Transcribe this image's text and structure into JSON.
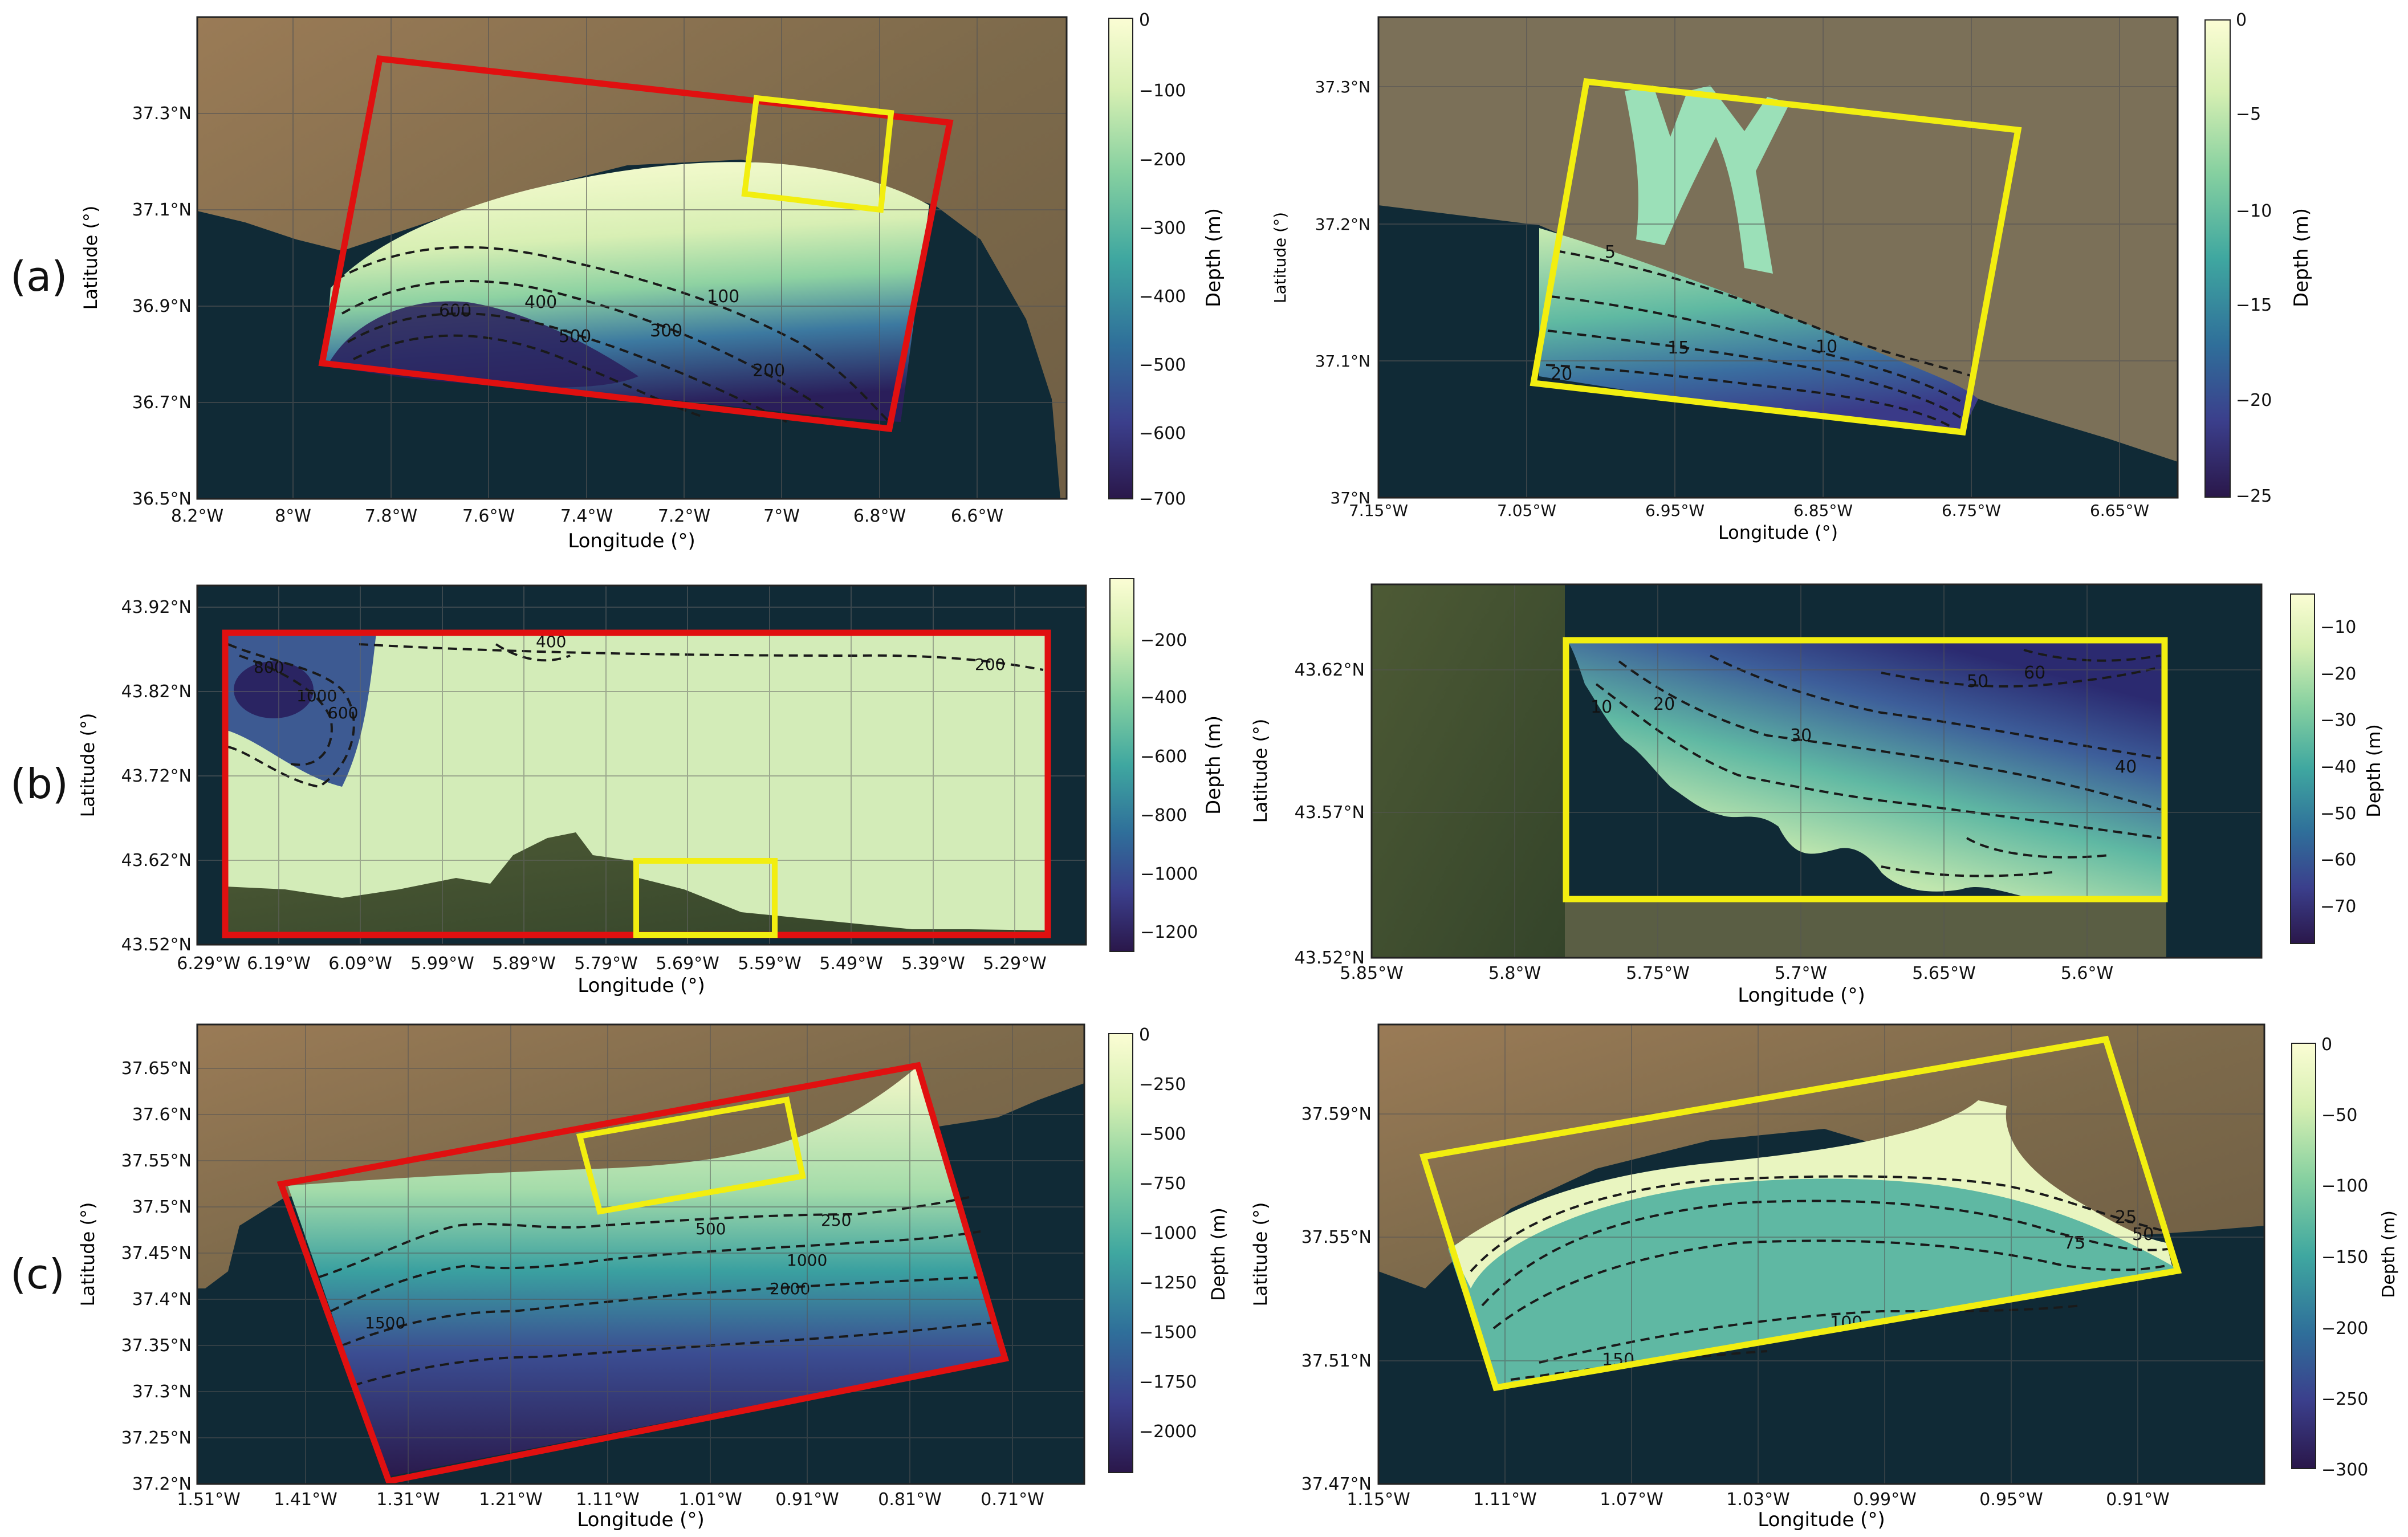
{
  "rows": [
    {
      "label": "(a)",
      "left": {
        "x_ticks": [
          "8.2°W",
          "8°W",
          "7.8°W",
          "7.6°W",
          "7.4°W",
          "7.2°W",
          "7°W",
          "6.8°W",
          "6.6°W"
        ],
        "y_ticks": [
          "36.5°N",
          "36.7°N",
          "36.9°N",
          "37.1°N",
          "37.3°N"
        ],
        "xlabel": "Longitude (°)",
        "ylabel": "Latitude (°)",
        "contours": [
          "100",
          "200",
          "300",
          "400",
          "500",
          "600"
        ],
        "colorbar": {
          "label": "Depth (m)",
          "ticks": [
            "0",
            "−100",
            "−200",
            "−300",
            "−400",
            "−500",
            "−600",
            "−700"
          ]
        }
      },
      "right": {
        "x_ticks": [
          "7.15°W",
          "7.05°W",
          "6.95°W",
          "6.85°W",
          "6.75°W",
          "6.65°W"
        ],
        "y_ticks": [
          "37°N",
          "37.1°N",
          "37.2°N",
          "37.3°N"
        ],
        "xlabel": "Longitude (°)",
        "ylabel": "Latitude (°)",
        "contours": [
          "5",
          "10",
          "15",
          "20"
        ],
        "colorbar": {
          "label": "Depth (m)",
          "ticks": [
            "0",
            "−5",
            "−10",
            "−15",
            "−20",
            "−25"
          ]
        }
      }
    },
    {
      "label": "(b)",
      "left": {
        "x_ticks": [
          "6.29°W",
          "6.19°W",
          "6.09°W",
          "5.99°W",
          "5.89°W",
          "5.79°W",
          "5.69°W",
          "5.59°W",
          "5.49°W",
          "5.39°W",
          "5.29°W"
        ],
        "y_ticks": [
          "43.52°N",
          "43.62°N",
          "43.72°N",
          "43.82°N",
          "43.92°N"
        ],
        "xlabel": "Longitude (°)",
        "ylabel": "Latitude (°)",
        "contours": [
          "200",
          "400",
          "600",
          "800",
          "1000"
        ],
        "colorbar": {
          "label": "Depth (m)",
          "ticks": [
            "−200",
            "−400",
            "−600",
            "−800",
            "−1000",
            "−1200"
          ]
        }
      },
      "right": {
        "x_ticks": [
          "5.85°W",
          "5.8°W",
          "5.75°W",
          "5.7°W",
          "5.65°W",
          "5.6°W"
        ],
        "y_ticks": [
          "43.52°N",
          "43.57°N",
          "43.62°N"
        ],
        "xlabel": "Longitude (°)",
        "ylabel": "Latitude (°)",
        "contours": [
          "10",
          "20",
          "30",
          "40",
          "50",
          "60"
        ],
        "colorbar": {
          "label": "Depth (m)",
          "ticks": [
            "−10",
            "−20",
            "−30",
            "−40",
            "−50",
            "−60",
            "−70"
          ]
        }
      }
    },
    {
      "label": "(c)",
      "left": {
        "x_ticks": [
          "1.51°W",
          "1.41°W",
          "1.31°W",
          "1.21°W",
          "1.11°W",
          "1.01°W",
          "0.91°W",
          "0.81°W",
          "0.71°W"
        ],
        "y_ticks": [
          "37.2°N",
          "37.25°N",
          "37.3°N",
          "37.35°N",
          "37.4°N",
          "37.45°N",
          "37.5°N",
          "37.55°N",
          "37.6°N",
          "37.65°N"
        ],
        "xlabel": "Longitude (°)",
        "ylabel": "Latitude (°)",
        "contours": [
          "250",
          "500",
          "1000",
          "1500",
          "2000"
        ],
        "colorbar": {
          "label": "Depth (m)",
          "ticks": [
            "0",
            "−250",
            "−500",
            "−750",
            "−1000",
            "−1250",
            "−1500",
            "−1750",
            "−2000"
          ]
        }
      },
      "right": {
        "x_ticks": [
          "1.15°W",
          "1.11°W",
          "1.07°W",
          "1.03°W",
          "0.99°W",
          "0.95°W",
          "0.91°W"
        ],
        "y_ticks": [
          "37.47°N",
          "37.51°N",
          "37.55°N",
          "37.59°N"
        ],
        "xlabel": "Longitude (°)",
        "ylabel": "Latitude (°)",
        "contours": [
          "25",
          "50",
          "75",
          "100",
          "150"
        ],
        "colorbar": {
          "label": "Depth (m)",
          "ticks": [
            "0",
            "−50",
            "−100",
            "−150",
            "−200",
            "−250",
            "−300"
          ]
        }
      }
    }
  ],
  "colors": {
    "outer_domain_box": "#e01010",
    "nested_domain_box": "#f2ee10",
    "sea": "#0f2a36",
    "land": "#8a6e4c",
    "colormap": [
      "#fbfdd4",
      "#d6efb2",
      "#86d0a0",
      "#3fa7a0",
      "#2f6f9a",
      "#3b3f8c",
      "#2a174a"
    ]
  }
}
